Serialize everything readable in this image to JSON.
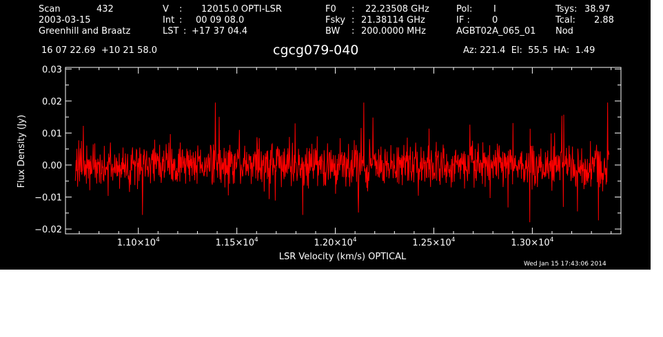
{
  "header": {
    "col1": {
      "scan_label": "Scan",
      "scan_value": "432",
      "date": "2003-03-15",
      "observer": "Greenhill and Braatz"
    },
    "col2": {
      "v_label": "V",
      "v_value": "12015.0 OPTI-LSR",
      "int_label": "Int",
      "int_value": "00 09 08.0",
      "lst_label": "LST",
      "lst_value": "+17 37 04.4"
    },
    "col3": {
      "f0_label": "F0",
      "f0_value": "22.23508 GHz",
      "fsky_label": "Fsky",
      "fsky_value": "21.38114 GHz",
      "bw_label": "BW",
      "bw_value": "200.0000 MHz"
    },
    "col4": {
      "pol_label": "Pol:",
      "pol_value": "I",
      "if_label": "IF :",
      "if_value": "0",
      "project": "AGBT02A_065_01"
    },
    "col5": {
      "tsys_label": "Tsys:",
      "tsys_value": "38.97",
      "tcal_label": "Tcal:",
      "tcal_value": "2.88",
      "mode": "Nod"
    },
    "coords": "16 07 22.69  +10 21 58.0",
    "source": "cgcg079-040",
    "azel": "Az: 221.4  El:  55.5  HA:  1.49"
  },
  "timestamp": "Wed Jan 15 17:43:06 2014",
  "colors": {
    "background": "#000000",
    "trace": "#ff0000",
    "axes": "#ffffff"
  },
  "chart_data": {
    "type": "line",
    "xlabel": "LSR Velocity (km/s) OPTICAL",
    "ylabel": "Flux Density (Jy)",
    "xlim": [
      10630,
      13450
    ],
    "ylim": [
      -0.0215,
      0.0305
    ],
    "x_ticks": [
      11000,
      11500,
      12000,
      12500,
      13000
    ],
    "x_tick_labels": [
      "1.10×10^4",
      "1.15×10^4",
      "1.20×10^4",
      "1.25×10^4",
      "1.30×10^4"
    ],
    "y_ticks": [
      -0.02,
      -0.01,
      0.0,
      0.01,
      0.02,
      0.03
    ],
    "y_tick_labels": [
      "−0.02",
      "−0.01",
      "0.00",
      "0.01",
      "0.02",
      "0.03"
    ],
    "grid": false,
    "series": [
      {
        "x_range": [
          10680,
          13390
        ],
        "n_points": 1400,
        "mean": 0.0,
        "rms": 0.0045,
        "min": -0.019,
        "max": 0.0195
      }
    ]
  }
}
